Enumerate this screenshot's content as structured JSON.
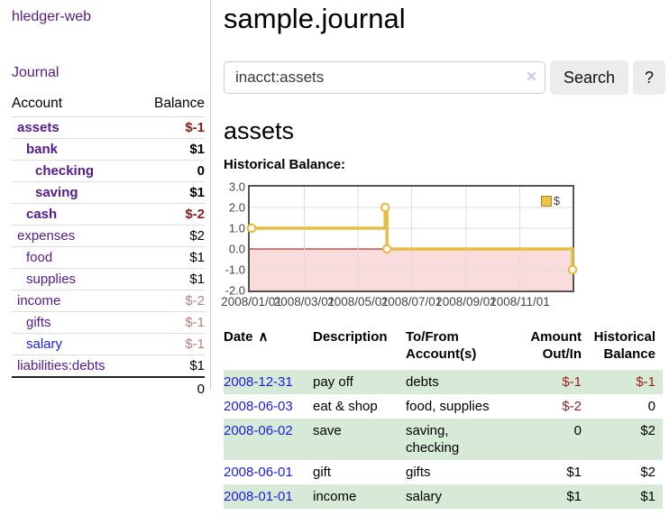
{
  "app": {
    "brand": "hledger-web"
  },
  "sidebar": {
    "nav_journal": "Journal",
    "accounts_table": {
      "headers": {
        "account": "Account",
        "balance": "Balance"
      },
      "rows": [
        {
          "name": "assets",
          "depth": 0,
          "in_account": true,
          "visited": true,
          "balance": "$-1",
          "balance_tone": "negative-strong"
        },
        {
          "name": "bank",
          "depth": 1,
          "in_account": true,
          "visited": true,
          "balance": "$1",
          "balance_tone": null
        },
        {
          "name": "checking",
          "depth": 2,
          "in_account": true,
          "visited": true,
          "balance": "0",
          "balance_tone": null
        },
        {
          "name": "saving",
          "depth": 2,
          "in_account": true,
          "visited": true,
          "balance": "$1",
          "balance_tone": null
        },
        {
          "name": "cash",
          "depth": 1,
          "in_account": true,
          "visited": true,
          "balance": "$-2",
          "balance_tone": "negative-strong"
        },
        {
          "name": "expenses",
          "depth": 0,
          "in_account": false,
          "visited": true,
          "balance": "$2",
          "balance_tone": null
        },
        {
          "name": "food",
          "depth": 1,
          "in_account": false,
          "visited": true,
          "balance": "$1",
          "balance_tone": null
        },
        {
          "name": "supplies",
          "depth": 1,
          "in_account": false,
          "visited": true,
          "balance": "$1",
          "balance_tone": null
        },
        {
          "name": "income",
          "depth": 0,
          "in_account": false,
          "visited": true,
          "balance": "$-2",
          "balance_tone": "negative-soft"
        },
        {
          "name": "gifts",
          "depth": 1,
          "in_account": false,
          "visited": true,
          "balance": "$-1",
          "balance_tone": "negative-soft"
        },
        {
          "name": "salary",
          "depth": 1,
          "in_account": false,
          "visited": false,
          "balance": "$-1",
          "balance_tone": "negative-soft"
        },
        {
          "name": "liabilities:debts",
          "depth": 0,
          "in_account": false,
          "visited": true,
          "balance": "$1",
          "balance_tone": null
        }
      ],
      "total": "0"
    }
  },
  "main": {
    "title": "sample.journal",
    "search": {
      "value": "inacct:assets",
      "clear_icon": "×",
      "button": "Search",
      "help_button": "?"
    },
    "account_heading": "assets",
    "chart_heading": "Historical Balance:",
    "transactions": {
      "headers": {
        "date": "Date",
        "description": "Description",
        "accounts": "To/From\nAccount(s)",
        "amount": "Amount\nOut/In",
        "balance": "Historical\nBalance"
      },
      "sort_icon": "∧",
      "rows": [
        {
          "date": "2008-12-31",
          "description": "pay off",
          "accounts": "debts",
          "amount": "$-1",
          "amount_negative": true,
          "balance": "$-1",
          "balance_negative": true
        },
        {
          "date": "2008-06-03",
          "description": "eat & shop",
          "accounts": "food, supplies",
          "amount": "$-2",
          "amount_negative": true,
          "balance": "0",
          "balance_negative": false
        },
        {
          "date": "2008-06-02",
          "description": "save",
          "accounts": "saving,\nchecking",
          "amount": "0",
          "amount_negative": false,
          "balance": "$2",
          "balance_negative": false
        },
        {
          "date": "2008-06-01",
          "description": "gift",
          "accounts": "gifts",
          "amount": "$1",
          "amount_negative": false,
          "balance": "$2",
          "balance_negative": false
        },
        {
          "date": "2008-01-01",
          "description": "income",
          "accounts": "salary",
          "amount": "$1",
          "amount_negative": false,
          "balance": "$1",
          "balance_negative": false
        }
      ]
    }
  },
  "chart_data": {
    "type": "line",
    "step": true,
    "title": "Historical Balance:",
    "legend": [
      {
        "label": "$",
        "color": "#ecc342"
      }
    ],
    "points": [
      {
        "date": "2008-01-01",
        "value": 1
      },
      {
        "date": "2008-06-01",
        "value": 2
      },
      {
        "date": "2008-06-03",
        "value": 0
      },
      {
        "date": "2008-12-31",
        "value": -1
      }
    ],
    "ylim": [
      -2,
      3
    ],
    "yticks": [
      "3.0",
      "2.0",
      "1.0",
      "0.0",
      "-1.0",
      "-2.0"
    ],
    "xticks": [
      {
        "date": "2008-01-01",
        "label": "2008/01/01"
      },
      {
        "date": "2008-03-01",
        "label": "2008/03/01"
      },
      {
        "date": "2008-05-01",
        "label": "2008/05/01"
      },
      {
        "date": "2008-07-01",
        "label": "2008/07/01"
      },
      {
        "date": "2008-09-01",
        "label": "2008/09/01"
      },
      {
        "date": "2008-11-01",
        "label": "2008/11/01"
      }
    ],
    "series_color": "#e6bd45",
    "negative_fill": "#fbdcdc",
    "zero_line_color": "#990000",
    "grid": true,
    "legend_position": "top-right"
  }
}
